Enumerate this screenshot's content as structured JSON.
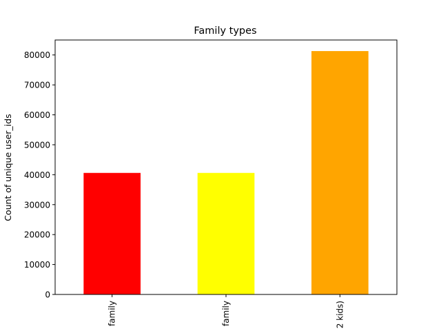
{
  "chart_data": {
    "type": "bar",
    "title": "Family types",
    "xlabel": "",
    "ylabel": "Count of unique user_ids",
    "categories": [
      "family",
      "family",
      "2 kids)"
    ],
    "values": [
      40600,
      40600,
      81300
    ],
    "colors": [
      "#ff0000",
      "#ffff00",
      "#ffa500"
    ],
    "ylim": [
      0,
      85000
    ],
    "yticks": [
      0,
      10000,
      20000,
      30000,
      40000,
      50000,
      60000,
      70000,
      80000
    ],
    "grid": false,
    "legend": "none"
  }
}
